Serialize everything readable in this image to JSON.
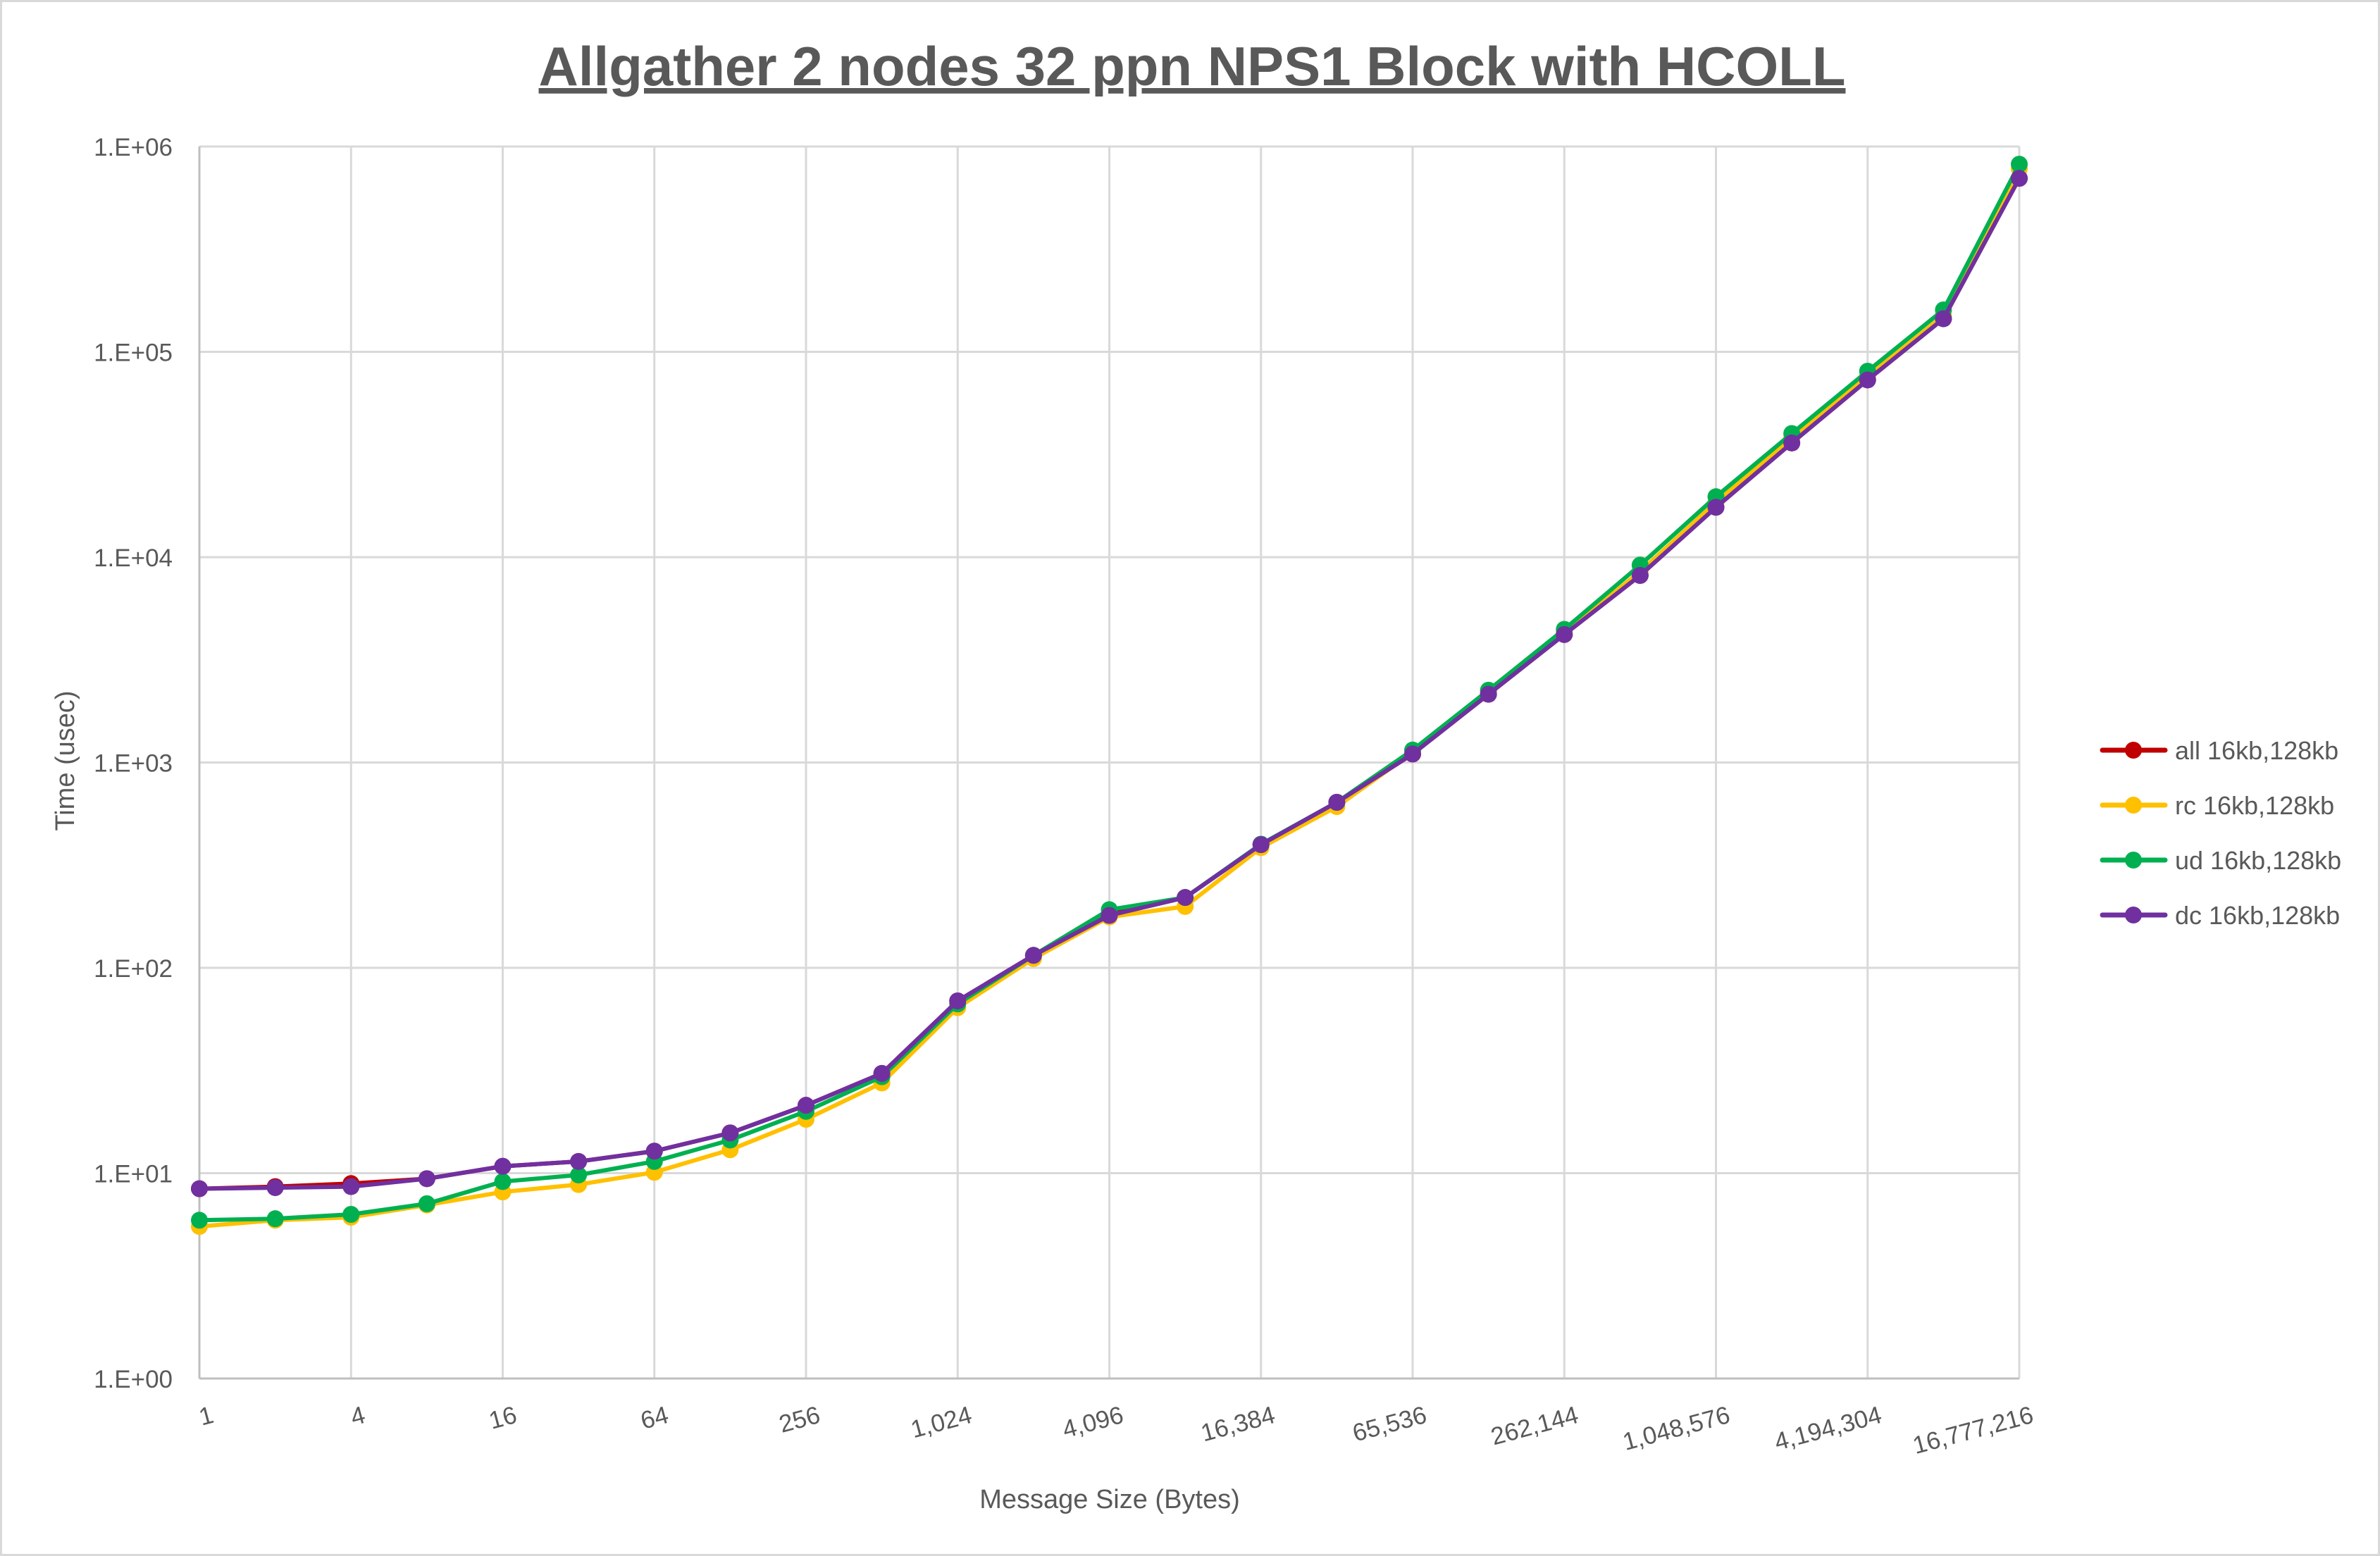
{
  "chart_data": {
    "type": "line",
    "title": "Allgather 2 nodes 32 ppn NPS1 Block with HCOLL",
    "xlabel": "Message Size (Bytes)",
    "ylabel": "Time (usec)",
    "x_scale": "log2",
    "y_scale": "log10",
    "ylim": [
      1,
      1000000
    ],
    "y_tick_labels": [
      "1.E+00",
      "1.E+01",
      "1.E+02",
      "1.E+03",
      "1.E+04",
      "1.E+05",
      "1.E+06"
    ],
    "x": [
      1,
      2,
      4,
      8,
      16,
      32,
      64,
      128,
      256,
      512,
      1024,
      2048,
      4096,
      8192,
      16384,
      32768,
      65536,
      131072,
      262144,
      524288,
      1048576,
      2097152,
      4194304,
      8388608,
      16777216
    ],
    "x_tick_labels": [
      "1",
      "4",
      "16",
      "64",
      "256",
      "1,024",
      "4,096",
      "16,384",
      "65,536",
      "262,144",
      "1,048,576",
      "4,194,304",
      "16,777,216"
    ],
    "grid": true,
    "legend_position": "right",
    "series": [
      {
        "name": "all 16kb,128kb",
        "color": "#c00000",
        "values": [
          8.4,
          8.6,
          8.9,
          9.4,
          10.8,
          11.4,
          12.8,
          15.7,
          21.4,
          30.6,
          69,
          115,
          183,
          220,
          398,
          640,
          1100,
          2150,
          4200,
          8150,
          17500,
          36000,
          73000,
          145000,
          700000
        ]
      },
      {
        "name": "rc 16kb,128kb",
        "color": "#ffc000",
        "values": [
          5.5,
          5.9,
          6.1,
          7.0,
          8.1,
          8.8,
          10.1,
          13,
          18.3,
          27.5,
          64,
          111,
          177,
          199,
          385,
          610,
          1120,
          2200,
          4300,
          8500,
          18500,
          38000,
          76000,
          150000,
          780000
        ]
      },
      {
        "name": "ud 16kb,128kb",
        "color": "#00b050",
        "values": [
          5.9,
          6.0,
          6.3,
          7.1,
          9.1,
          9.8,
          11.4,
          14.5,
          20,
          29.5,
          66.7,
          115,
          192,
          220,
          400,
          640,
          1150,
          2250,
          4450,
          9150,
          19700,
          40000,
          80500,
          160000,
          820000
        ]
      },
      {
        "name": "dc 16kb,128kb",
        "color": "#7030a0",
        "values": [
          8.4,
          8.5,
          8.6,
          9.4,
          10.8,
          11.4,
          12.8,
          15.7,
          21.4,
          30.6,
          69,
          115,
          180,
          220,
          398,
          640,
          1100,
          2150,
          4200,
          8150,
          17500,
          36000,
          73000,
          145000,
          700000
        ]
      }
    ]
  }
}
